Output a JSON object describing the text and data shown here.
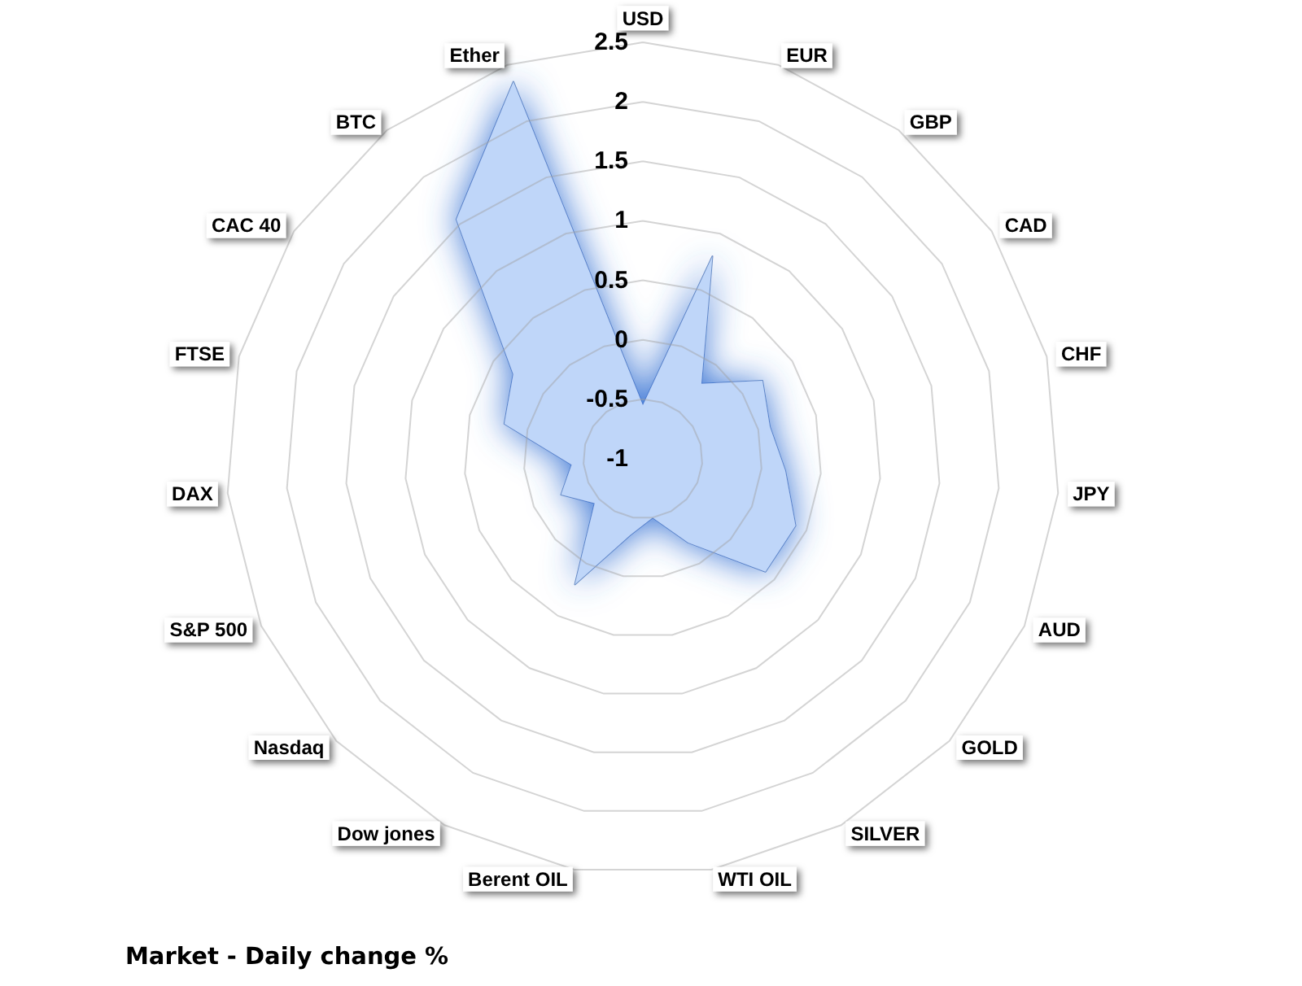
{
  "chart_data": {
    "type": "radar",
    "title": "Market - Daily change %",
    "categories": [
      "USD",
      "EUR",
      "GBP",
      "CAD",
      "CHF",
      "JPY",
      "AUD",
      "GOLD",
      "SILVER",
      "WTI OIL",
      "Berent OIL",
      "Dow jones",
      "Nasdaq",
      "S&P 500",
      "DAX",
      "FTSE",
      "CAC 40",
      "BTC",
      "Ether"
    ],
    "series": [
      {
        "color": "#bfd6f9",
        "values": [
          -0.55,
          0.8,
          -0.2,
          0.2,
          0.1,
          0.2,
          0.4,
          0.4,
          -0.2,
          -0.5,
          -0.35,
          0.2,
          -0.45,
          -0.25,
          -0.4,
          0.2,
          0.3,
          1.55,
          2.35
        ]
      }
    ],
    "ylim": [
      -1,
      2.5
    ],
    "yticks": [
      -1,
      -0.5,
      0,
      0.5,
      1,
      1.5,
      2,
      2.5
    ],
    "grid": true,
    "marker": "none"
  }
}
